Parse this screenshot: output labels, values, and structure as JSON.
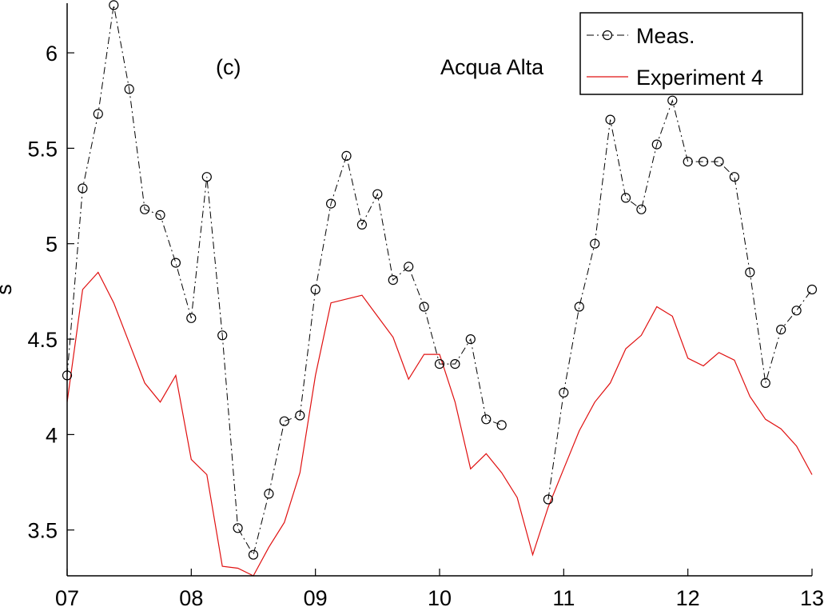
{
  "chart_data": {
    "type": "line",
    "title": "",
    "xlabel": "",
    "ylabel": "s",
    "xlim": [
      7,
      13
    ],
    "ylim": [
      3.26,
      6.26
    ],
    "grid": false,
    "legend_position": "top-right",
    "x_ticks": [
      {
        "value": 7,
        "label": "07"
      },
      {
        "value": 8,
        "label": "08"
      },
      {
        "value": 9,
        "label": "09"
      },
      {
        "value": 10,
        "label": "10"
      },
      {
        "value": 11,
        "label": "11"
      },
      {
        "value": 12,
        "label": "12"
      },
      {
        "value": 13,
        "label": "13"
      }
    ],
    "y_ticks": [
      {
        "value": 3.5,
        "label": "3.5"
      },
      {
        "value": 4,
        "label": "4"
      },
      {
        "value": 4.5,
        "label": "4.5"
      },
      {
        "value": 5,
        "label": "5"
      },
      {
        "value": 5.5,
        "label": "5.5"
      },
      {
        "value": 6,
        "label": "6"
      }
    ],
    "annotations": [
      "(c)",
      "Acqua Alta"
    ],
    "series": [
      {
        "name": "Meas.",
        "color": "#000000",
        "style": "dash-dot",
        "marker": "circle",
        "segments": [
          [
            [
              7.0,
              4.31
            ],
            [
              7.125,
              5.29
            ],
            [
              7.25,
              5.68
            ],
            [
              7.375,
              6.25
            ],
            [
              7.5,
              5.81
            ],
            [
              7.625,
              5.18
            ],
            [
              7.75,
              5.15
            ],
            [
              7.875,
              4.9
            ],
            [
              8.0,
              4.61
            ],
            [
              8.125,
              5.35
            ],
            [
              8.25,
              4.52
            ],
            [
              8.375,
              3.51
            ],
            [
              8.5,
              3.37
            ],
            [
              8.625,
              3.69
            ],
            [
              8.75,
              4.07
            ],
            [
              8.875,
              4.1
            ],
            [
              9.0,
              4.76
            ],
            [
              9.125,
              5.21
            ],
            [
              9.25,
              5.46
            ],
            [
              9.375,
              5.1
            ],
            [
              9.5,
              5.26
            ],
            [
              9.625,
              4.81
            ],
            [
              9.75,
              4.88
            ],
            [
              9.875,
              4.67
            ],
            [
              10.0,
              4.37
            ],
            [
              10.125,
              4.37
            ],
            [
              10.25,
              4.5
            ],
            [
              10.375,
              4.08
            ],
            [
              10.5,
              4.05
            ]
          ],
          [
            [
              10.875,
              3.66
            ],
            [
              11.0,
              4.22
            ],
            [
              11.125,
              4.67
            ],
            [
              11.25,
              5.0
            ],
            [
              11.375,
              5.65
            ],
            [
              11.5,
              5.24
            ],
            [
              11.625,
              5.18
            ],
            [
              11.75,
              5.52
            ],
            [
              11.875,
              5.75
            ],
            [
              12.0,
              5.43
            ],
            [
              12.125,
              5.43
            ],
            [
              12.25,
              5.43
            ],
            [
              12.375,
              5.35
            ],
            [
              12.5,
              4.85
            ],
            [
              12.625,
              4.27
            ],
            [
              12.75,
              4.55
            ],
            [
              12.875,
              4.65
            ],
            [
              13.0,
              4.76
            ]
          ]
        ]
      },
      {
        "name": "Experiment 4",
        "color": "#e01010",
        "style": "solid",
        "marker": "none",
        "segments": [
          [
            [
              7.0,
              4.17
            ],
            [
              7.125,
              4.76
            ],
            [
              7.25,
              4.85
            ],
            [
              7.375,
              4.69
            ],
            [
              7.5,
              4.48
            ],
            [
              7.625,
              4.27
            ],
            [
              7.75,
              4.17
            ],
            [
              7.875,
              4.31
            ],
            [
              8.0,
              3.87
            ],
            [
              8.125,
              3.79
            ],
            [
              8.25,
              3.31
            ],
            [
              8.375,
              3.3
            ],
            [
              8.5,
              3.26
            ],
            [
              8.625,
              3.41
            ],
            [
              8.75,
              3.54
            ],
            [
              8.875,
              3.8
            ],
            [
              9.0,
              4.31
            ],
            [
              9.125,
              4.69
            ],
            [
              9.25,
              4.71
            ],
            [
              9.375,
              4.73
            ],
            [
              9.5,
              4.62
            ],
            [
              9.625,
              4.51
            ],
            [
              9.75,
              4.29
            ],
            [
              9.875,
              4.42
            ],
            [
              10.0,
              4.42
            ],
            [
              10.125,
              4.17
            ],
            [
              10.25,
              3.82
            ],
            [
              10.375,
              3.9
            ],
            [
              10.5,
              3.8
            ],
            [
              10.625,
              3.67
            ],
            [
              10.75,
              3.37
            ],
            [
              10.875,
              3.62
            ],
            [
              11.0,
              3.82
            ],
            [
              11.125,
              4.02
            ],
            [
              11.25,
              4.17
            ],
            [
              11.375,
              4.27
            ],
            [
              11.5,
              4.45
            ],
            [
              11.625,
              4.52
            ],
            [
              11.75,
              4.67
            ],
            [
              11.875,
              4.62
            ],
            [
              12.0,
              4.4
            ],
            [
              12.125,
              4.36
            ],
            [
              12.25,
              4.43
            ],
            [
              12.375,
              4.39
            ],
            [
              12.5,
              4.2
            ],
            [
              12.625,
              4.08
            ],
            [
              12.75,
              4.03
            ],
            [
              12.875,
              3.94
            ],
            [
              13.0,
              3.79
            ]
          ]
        ]
      }
    ]
  }
}
